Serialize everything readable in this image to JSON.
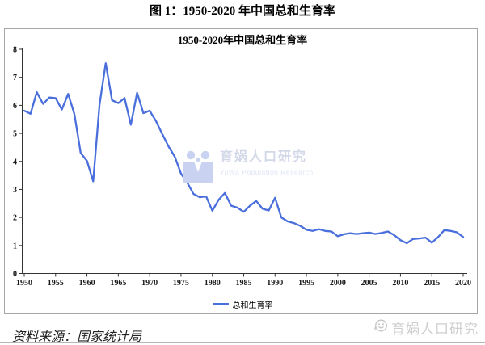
{
  "page_title": "图 1：1950-2020 年中国总和生育率",
  "chart": {
    "inner_title": "1950-2020年中国总和生育率",
    "legend_label": "总和生育率",
    "line_color": "#4a6fdc"
  },
  "watermark_center": {
    "line1": "育娲人口研究",
    "line2": "YuWa Population Research",
    "logo_color": "#c9d3f1"
  },
  "watermark_bottom": {
    "text": "育娲人口研究",
    "logo_color": "#c6c6c6"
  },
  "source_note": "资料来源：国家统计局",
  "chart_data": {
    "type": "line",
    "title": "1950-2020年中国总和生育率",
    "xlabel": "",
    "ylabel": "",
    "xlim": [
      1950,
      2020
    ],
    "ylim": [
      0,
      8
    ],
    "x_ticks": [
      1950,
      1955,
      1960,
      1965,
      1970,
      1975,
      1980,
      1985,
      1990,
      1995,
      2000,
      2005,
      2010,
      2015,
      2020
    ],
    "y_ticks": [
      0,
      1,
      2,
      3,
      4,
      5,
      6,
      7,
      8
    ],
    "grid": false,
    "legend_position": "bottom",
    "series": [
      {
        "name": "总和生育率",
        "color": "#4a6fdc",
        "x_start": 1950,
        "x_step": 1,
        "values": [
          5.81,
          5.7,
          6.47,
          6.05,
          6.28,
          6.26,
          5.85,
          6.41,
          5.68,
          4.3,
          4.02,
          3.29,
          6.02,
          7.5,
          6.18,
          6.08,
          6.26,
          5.31,
          6.45,
          5.72,
          5.81,
          5.44,
          4.98,
          4.54,
          4.17,
          3.57,
          3.24,
          2.84,
          2.72,
          2.75,
          2.24,
          2.63,
          2.87,
          2.42,
          2.35,
          2.2,
          2.42,
          2.59,
          2.31,
          2.25,
          2.7,
          2.0,
          1.86,
          1.8,
          1.7,
          1.56,
          1.52,
          1.58,
          1.52,
          1.5,
          1.33,
          1.4,
          1.44,
          1.41,
          1.44,
          1.46,
          1.41,
          1.45,
          1.5,
          1.37,
          1.19,
          1.08,
          1.23,
          1.25,
          1.28,
          1.1,
          1.3,
          1.55,
          1.52,
          1.47,
          1.3
        ]
      }
    ]
  }
}
